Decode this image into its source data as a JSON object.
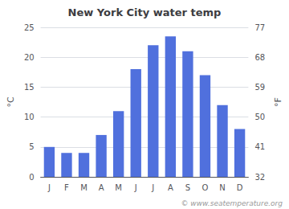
{
  "chart_data": {
    "type": "bar",
    "title": "New York City water temp",
    "categories": [
      "J",
      "F",
      "M",
      "A",
      "M",
      "J",
      "J",
      "A",
      "S",
      "O",
      "N",
      "D"
    ],
    "values": [
      5.0,
      4.0,
      4.0,
      7.0,
      11.0,
      18.0,
      22.0,
      23.5,
      21.0,
      17.0,
      12.0,
      8.0
    ],
    "ylabel": "°C",
    "ylim": [
      0,
      25
    ],
    "yticks": [
      0,
      5,
      10,
      15,
      20,
      25
    ],
    "y2label": "°F",
    "y2lim": [
      32,
      77
    ],
    "y2ticks": [
      32,
      41,
      50,
      59,
      68,
      77
    ],
    "annotations": [
      "© www.seatemperature.org"
    ],
    "grid": true
  }
}
